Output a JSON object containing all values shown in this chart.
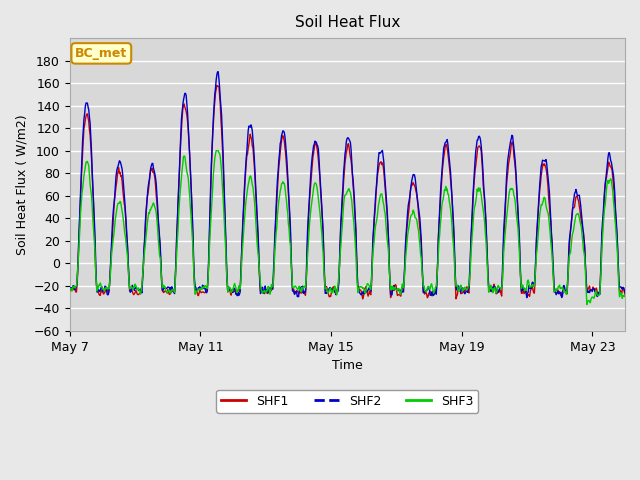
{
  "title": "Soil Heat Flux",
  "xlabel": "Time",
  "ylabel": "Soil Heat Flux ( W/m2)",
  "ylim": [
    -60,
    200
  ],
  "yticks": [
    -60,
    -40,
    -20,
    0,
    20,
    40,
    60,
    80,
    100,
    120,
    140,
    160,
    180
  ],
  "xtick_labels": [
    "May 7",
    "May 11",
    "May 15",
    "May 19",
    "May 23"
  ],
  "colors": {
    "SHF1": "#cc0000",
    "SHF2": "#0000cc",
    "SHF3": "#00cc00"
  },
  "background_color": "#e8e8e8",
  "plot_bg_color": "#d8d8d8",
  "grid_color": "#ffffff",
  "annotation_text": "BC_met",
  "annotation_bg": "#ffffcc",
  "annotation_border": "#cc8800",
  "legend_entries": [
    "SHF1",
    "SHF2",
    "SHF3"
  ],
  "n_days": 17,
  "samples_per_day": 48
}
